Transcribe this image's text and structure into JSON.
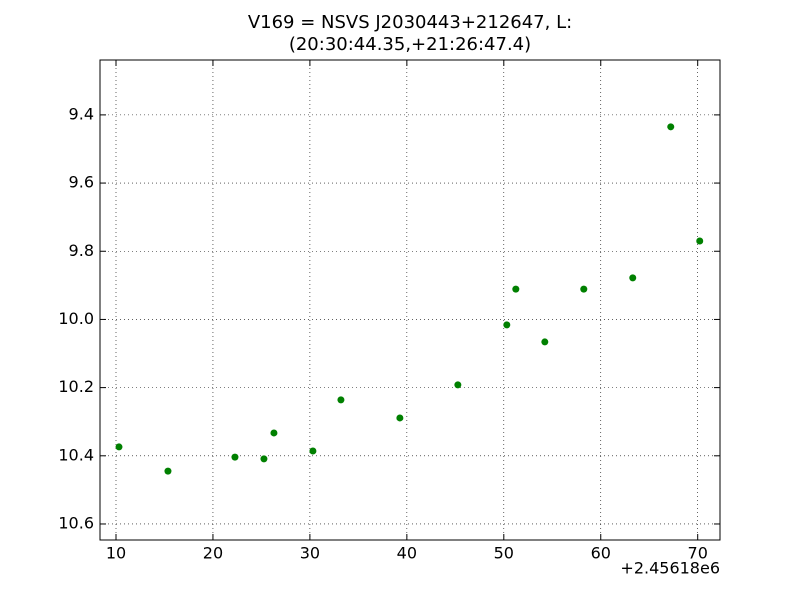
{
  "chart_data": {
    "type": "scatter",
    "title": [
      "V169 = NSVS J2030443+212647, L:",
      "(20:30:44.35,+21:26:47.4)"
    ],
    "x_offset_label": "+2.45618e6",
    "x": [
      10.31,
      15.36,
      22.27,
      25.26,
      26.29,
      30.31,
      33.2,
      39.28,
      45.26,
      50.31,
      51.24,
      54.23,
      58.25,
      63.3,
      67.22,
      70.21
    ],
    "y": [
      10.374,
      10.445,
      10.404,
      10.409,
      10.333,
      10.386,
      10.236,
      10.289,
      10.192,
      10.016,
      9.911,
      10.066,
      9.911,
      9.878,
      9.435,
      9.77
    ],
    "color": "#008000",
    "xlim": [
      8.35,
      72.3
    ],
    "ylim": [
      10.647,
      9.239
    ],
    "xticks": [
      10,
      20,
      30,
      40,
      50,
      60,
      70
    ],
    "yticks": [
      9.4,
      9.6,
      9.8,
      {
        "value": 10.0,
        "label": "10.0"
      },
      10.2,
      10.4,
      10.6
    ],
    "grid": true
  }
}
